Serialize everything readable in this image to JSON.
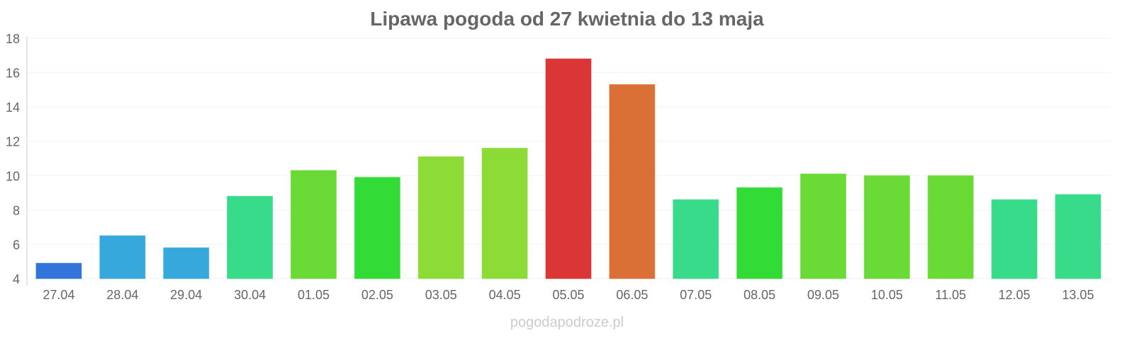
{
  "chart_data": {
    "type": "bar",
    "title": "Lipawa pogoda od 27 kwietnia do 13 maja",
    "xlabel": "",
    "ylabel": "",
    "ylim": [
      4,
      18
    ],
    "yticks": [
      4,
      6,
      8,
      10,
      12,
      14,
      16,
      18
    ],
    "grid": true,
    "categories": [
      "27.04",
      "28.04",
      "29.04",
      "30.04",
      "01.05",
      "02.05",
      "03.05",
      "04.05",
      "05.05",
      "06.05",
      "07.05",
      "08.05",
      "09.05",
      "10.05",
      "11.05",
      "12.05",
      "13.05"
    ],
    "values": [
      4.9,
      6.5,
      5.8,
      8.8,
      10.3,
      9.9,
      11.1,
      11.6,
      16.8,
      15.3,
      8.6,
      9.3,
      10.1,
      10.0,
      10.0,
      8.6,
      8.9
    ],
    "colors": [
      "#3374db",
      "#36a8db",
      "#36a8db",
      "#38db8a",
      "#6adb36",
      "#33db36",
      "#8cdb36",
      "#8cdb36",
      "#db3636",
      "#db7036",
      "#38db8a",
      "#33db36",
      "#6adb36",
      "#6adb36",
      "#6adb36",
      "#38db8a",
      "#38db8a"
    ]
  },
  "footer": "pogodapodroze.pl"
}
